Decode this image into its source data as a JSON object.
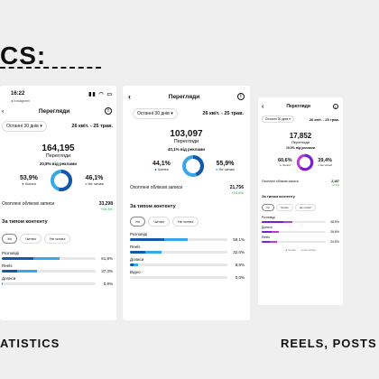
{
  "page": {
    "heading": "CS:",
    "caption_left": "ATISTICS",
    "caption_right": "REELS, POSTS S"
  },
  "colors": {
    "blue_dark": "#1557a8",
    "blue_light": "#36a8e8",
    "purple_dark": "#7a1fcf",
    "purple_light": "#c03ad6",
    "track": "#e7e7e7"
  },
  "icons": [
    "back-arrow-icon",
    "info-icon",
    "chevron-down-icon",
    "signal-icon",
    "wifi-icon",
    "battery-icon"
  ],
  "screen1": {
    "time": "16:22",
    "back_app": "◂ Instagram",
    "title": "Перегляди",
    "period": "Останні 30 днів",
    "date_range": "26 квіт. - 25 трав.",
    "total": "164,195",
    "total_label": "Перегляди",
    "ads_share": "20,8% від реклами",
    "followers_pct": "53,9%",
    "followers_label": "Читачі",
    "nonfollowers_pct": "46,1%",
    "nonfollowers_label": "Не читачі",
    "donut_followers_fraction": 0.539,
    "reached_label": "Охоплені облікові записи",
    "reached_value": "33,298",
    "reached_change": "+45.4%",
    "content_type_label": "За типом контенту",
    "chips": [
      "Усі",
      "Читачі",
      "Не читачі"
    ],
    "bars": [
      {
        "label": "Розповіді",
        "pct": "61,8%",
        "value": 0.618,
        "dark_share": 0.55
      },
      {
        "label": "Reels",
        "pct": "37,3%",
        "value": 0.373,
        "dark_share": 0.45
      },
      {
        "label": "Дописи",
        "pct": "0,9%",
        "value": 0.009,
        "dark_share": 0.5
      }
    ]
  },
  "screen2": {
    "title": "Перегляди",
    "period": "Останні 30 днів",
    "date_range": "26 квіт. - 25 трав.",
    "total": "103,097",
    "total_label": "Перегляди",
    "ads_share": "40,1% від реклами",
    "followers_pct": "44,1%",
    "followers_label": "Читачі",
    "nonfollowers_pct": "55,9%",
    "nonfollowers_label": "Не читачі",
    "donut_followers_fraction": 0.441,
    "reached_label": "Охоплені облікові записи",
    "reached_value": "21,756",
    "reached_change": "+15,6%",
    "content_type_label": "За типом контенту",
    "chips": [
      "Усі",
      "Читачі",
      "Не читачі"
    ],
    "bars": [
      {
        "label": "Розповіді",
        "pct": "59,1%",
        "value": 0.591,
        "dark_share": 0.6
      },
      {
        "label": "Reels",
        "pct": "32,0%",
        "value": 0.32,
        "dark_share": 0.5
      },
      {
        "label": "Дописи",
        "pct": "8,8%",
        "value": 0.088,
        "dark_share": 0.4
      },
      {
        "label": "Відео",
        "pct": "0,0%",
        "value": 0.0,
        "dark_share": 0.5
      }
    ]
  },
  "screen3": {
    "title": "Перегляди",
    "period": "Останні 30 днів",
    "date_range": "26 квіт. - 25 трав.",
    "total": "17,852",
    "total_label": "Перегляди",
    "ads_share": "19,0% від реклами",
    "followers_pct": "60,6%",
    "followers_label": "Читачі",
    "nonfollowers_pct": "39,4%",
    "nonfollowers_label": "Не читачі",
    "donut_followers_fraction": 0.606,
    "reached_label": "Охоплені облікові записи",
    "reached_value": "2,167",
    "reached_change": "+0,4%",
    "content_type_label": "За типом контенту",
    "chips": [
      "Усі",
      "Читачі",
      "Не читачі"
    ],
    "bars": [
      {
        "label": "Розповіді",
        "pct": "48,5%",
        "value": 0.485,
        "dark_share": 0.7
      },
      {
        "label": "Дописи",
        "pct": "26,8%",
        "value": 0.268,
        "dark_share": 0.6
      },
      {
        "label": "Reels",
        "pct": "24,5%",
        "value": 0.245,
        "dark_share": 0.5
      }
    ],
    "legend": [
      "Читачі",
      "Не читачі"
    ]
  }
}
